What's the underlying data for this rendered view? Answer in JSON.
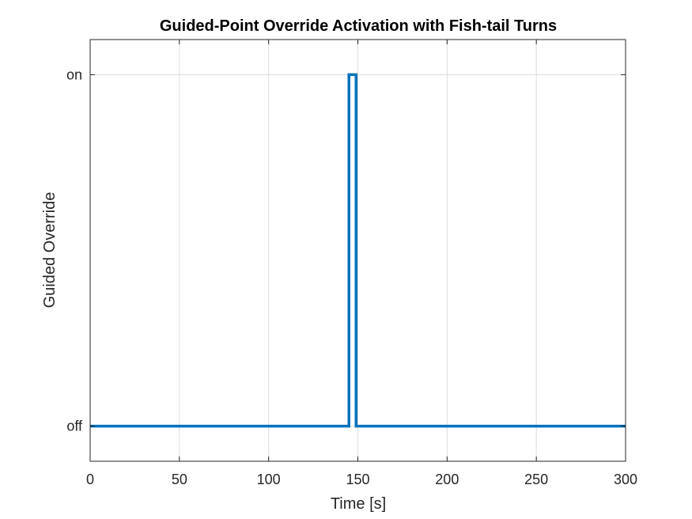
{
  "chart_data": {
    "type": "line",
    "title": "Guided-Point Override Activation with Fish-tail Turns",
    "xlabel": "Time [s]",
    "ylabel": "Guided Override",
    "xlim": [
      0,
      300
    ],
    "ylim": [
      -0.1,
      1.1
    ],
    "xticks": [
      0,
      50,
      100,
      150,
      200,
      250,
      300
    ],
    "xtick_labels": [
      "0",
      "50",
      "100",
      "150",
      "200",
      "250",
      "300"
    ],
    "yticks": [
      0,
      1
    ],
    "ytick_labels": [
      "off",
      "on"
    ],
    "grid": true,
    "legend": "none",
    "series": [
      {
        "color": "#0072bd",
        "x": [
          0,
          145,
          145,
          149,
          149,
          300
        ],
        "y": [
          0,
          0,
          1,
          1,
          0,
          0
        ]
      }
    ]
  }
}
